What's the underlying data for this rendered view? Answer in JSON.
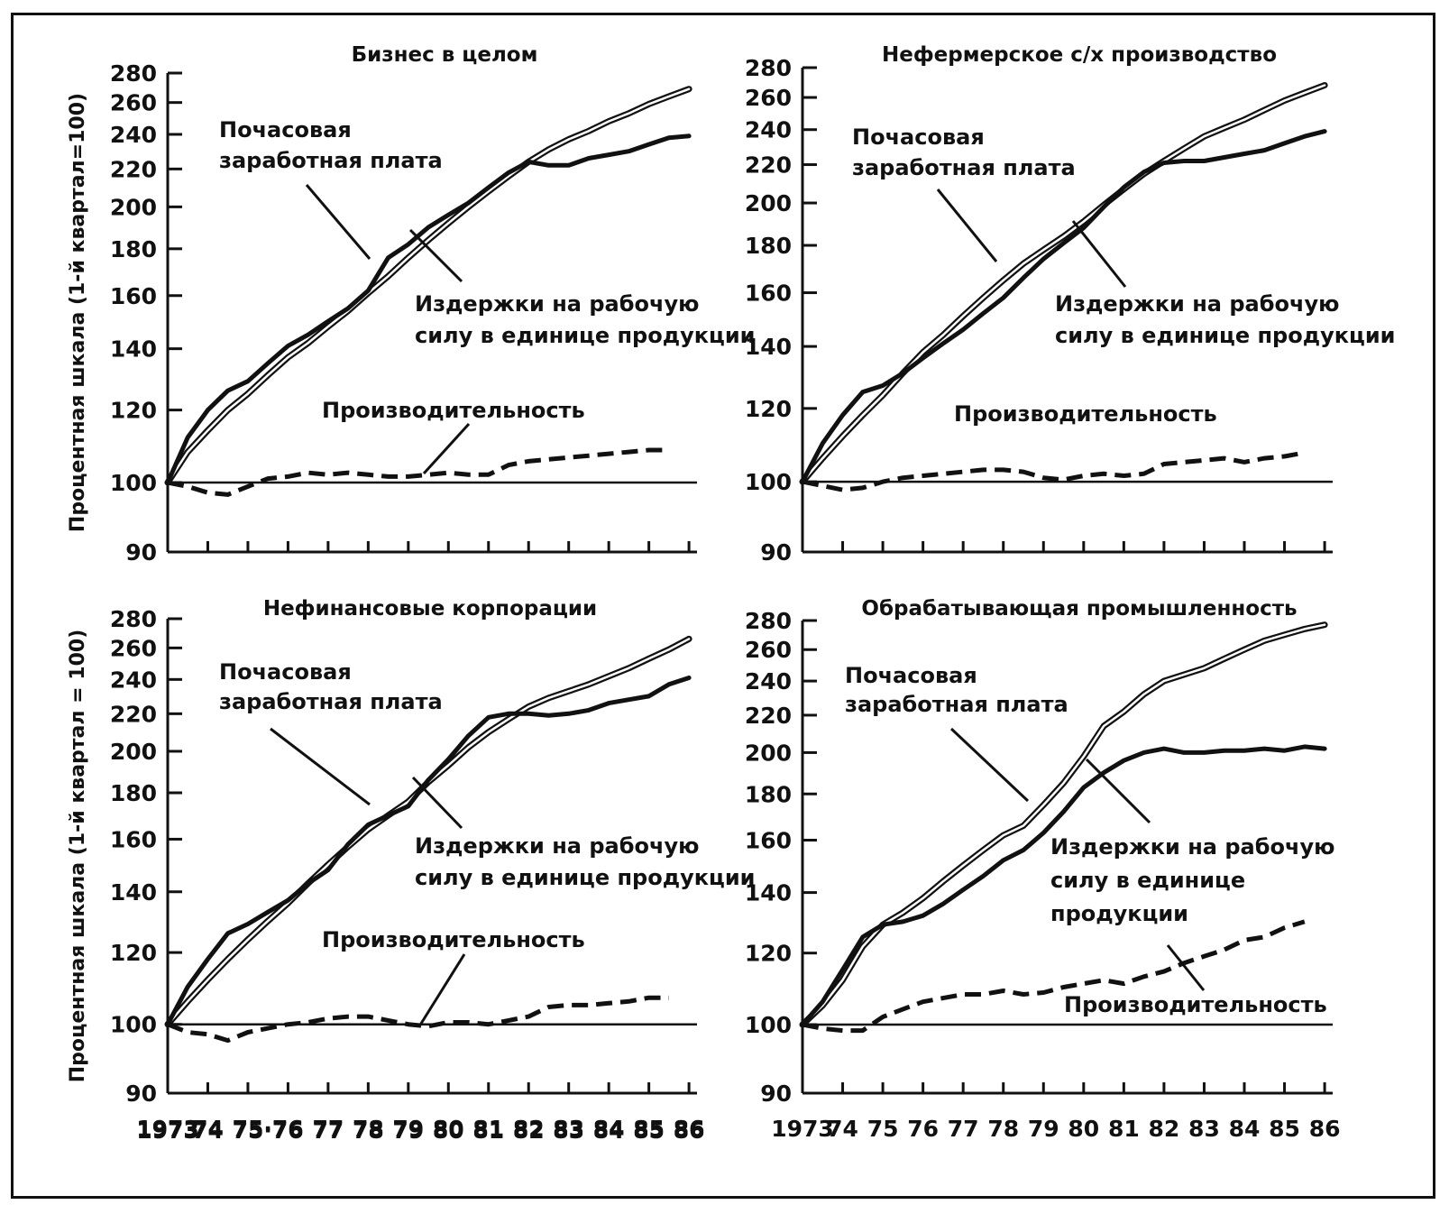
{
  "chart_data": [
    {
      "type": "line",
      "title": "Бизнес в целом",
      "ylabel": "Процентная шкала (1-й квартал=100)",
      "y_scale": "log",
      "ylim": [
        90,
        280
      ],
      "y_ticks": [
        "280",
        "260",
        "240",
        "220",
        "200",
        "180",
        "160",
        "140",
        "120",
        "100",
        "90"
      ],
      "x_tick_labels": [
        "1973",
        "74",
        "75·76",
        "77",
        "78",
        "79",
        "80",
        "81",
        "82",
        "83",
        "84",
        "85",
        "86"
      ],
      "xlim": [
        1973,
        1986.2
      ],
      "reference_line": 100,
      "annotations": [
        [
          "Почасовая",
          "заработная плата"
        ],
        [
          "Издержки на рабочую",
          "силу в единице продукции"
        ],
        [
          "Производительность"
        ]
      ],
      "series": [
        {
          "id": "wage",
          "style": "thin-double",
          "x": [
            1973,
            1973.5,
            1974,
            1974.5,
            1975,
            1975.5,
            1976,
            1976.5,
            1977,
            1977.5,
            1978,
            1978.5,
            1979,
            1979.5,
            1980,
            1980.5,
            1981,
            1981.5,
            1982,
            1982.5,
            1983,
            1983.5,
            1984,
            1984.5,
            1985,
            1985.5,
            1986
          ],
          "y": [
            100,
            108,
            114,
            120,
            125,
            131,
            137,
            142,
            148,
            154,
            161,
            168,
            176,
            184,
            192,
            200,
            208,
            216,
            224,
            231,
            237,
            242,
            248,
            253,
            259,
            264,
            269
          ]
        },
        {
          "id": "unit-labor-cost",
          "style": "thick",
          "x": [
            1973,
            1973.5,
            1974,
            1974.5,
            1975,
            1975.5,
            1976,
            1976.5,
            1977,
            1977.5,
            1978,
            1978.5,
            1979,
            1979.5,
            1980,
            1980.5,
            1981,
            1981.5,
            1982,
            1982.5,
            1983,
            1983.5,
            1984,
            1984.5,
            1985,
            1985.5,
            1986
          ],
          "y": [
            100,
            112,
            120,
            126,
            129,
            135,
            141,
            145,
            150,
            155,
            162,
            176,
            182,
            190,
            196,
            202,
            210,
            218,
            224,
            222,
            222,
            226,
            228,
            230,
            234,
            238,
            239
          ]
        },
        {
          "id": "productivity",
          "style": "dashed",
          "x": [
            1973,
            1973.5,
            1974,
            1974.5,
            1975,
            1975.5,
            1976,
            1976.5,
            1977,
            1977.5,
            1978,
            1978.5,
            1979,
            1979.5,
            1980,
            1980.5,
            1981,
            1981.5,
            1982,
            1982.5,
            1983,
            1983.5,
            1984,
            1984.5,
            1985,
            1985.5
          ],
          "y": [
            100,
            99,
            97.5,
            97,
            99,
            101,
            101.5,
            102.5,
            102,
            102.5,
            102,
            101.5,
            101.5,
            102,
            102.5,
            102,
            102,
            104.5,
            105.5,
            106,
            106.5,
            107,
            107.5,
            108,
            108.5,
            108.5
          ]
        }
      ]
    },
    {
      "type": "line",
      "title": "Нефермерское с/х производство",
      "ylabel": "",
      "y_scale": "log",
      "ylim": [
        90,
        280
      ],
      "y_ticks": [
        "280",
        "260",
        "240",
        "220",
        "200",
        "180",
        "160",
        "140",
        "120",
        "100",
        "90"
      ],
      "x_tick_labels": [],
      "xlim": [
        1973,
        1986.2
      ],
      "reference_line": 100,
      "annotations": [
        [
          "Почасовая",
          "заработная плата"
        ],
        [
          "Издержки на рабочую",
          "силу в единице продукции"
        ],
        [
          "Производительность"
        ]
      ],
      "series": [
        {
          "id": "wage",
          "style": "thin-double",
          "x": [
            1973,
            1973.5,
            1974,
            1974.5,
            1975,
            1975.5,
            1976,
            1976.5,
            1977,
            1977.5,
            1978,
            1978.5,
            1979,
            1979.5,
            1980,
            1980.5,
            1981,
            1981.5,
            1982,
            1982.5,
            1983,
            1983.5,
            1984,
            1984.5,
            1985,
            1985.5,
            1986
          ],
          "y": [
            100,
            106,
            112,
            118,
            124,
            131,
            138,
            144,
            151,
            158,
            165,
            172,
            178,
            184,
            191,
            199,
            207,
            215,
            222,
            229,
            236,
            241,
            246,
            252,
            258,
            263,
            268
          ]
        },
        {
          "id": "unit-labor-cost",
          "style": "thick",
          "x": [
            1973,
            1973.5,
            1974,
            1974.5,
            1975,
            1975.5,
            1976,
            1976.5,
            1977,
            1977.5,
            1978,
            1978.5,
            1979,
            1979.5,
            1980,
            1980.5,
            1981,
            1981.5,
            1982,
            1982.5,
            1983,
            1983.5,
            1984,
            1984.5,
            1985,
            1985.5,
            1986
          ],
          "y": [
            100,
            110,
            118,
            125,
            127,
            131,
            136,
            141,
            146,
            152,
            158,
            166,
            174,
            181,
            188,
            198,
            208,
            216,
            221,
            222,
            222,
            224,
            226,
            228,
            232,
            236,
            239
          ]
        },
        {
          "id": "productivity",
          "style": "dashed",
          "x": [
            1973,
            1973.5,
            1974,
            1974.5,
            1975,
            1975.5,
            1976,
            1976.5,
            1977,
            1977.5,
            1978,
            1978.5,
            1979,
            1979.5,
            1980,
            1980.5,
            1981,
            1981.5,
            1982,
            1982.5,
            1983,
            1983.5,
            1984,
            1984.5,
            1985,
            1985.5
          ],
          "y": [
            100,
            99,
            98,
            98.5,
            100,
            101,
            101.5,
            102,
            102.5,
            103,
            103,
            102.5,
            101,
            100.5,
            101.5,
            102,
            101.5,
            102,
            104.5,
            105,
            105.5,
            106,
            105,
            106,
            106.5,
            107.5
          ]
        }
      ]
    },
    {
      "type": "line",
      "title": "Нефинансовые корпорации",
      "ylabel": "Процентная шкала (1-й квартал = 100)",
      "y_scale": "log",
      "ylim": [
        90,
        280
      ],
      "y_ticks": [
        "280",
        "260",
        "240",
        "220",
        "200",
        "180",
        "160",
        "140",
        "120",
        "100",
        "90"
      ],
      "x_tick_labels": [
        "1973",
        "74",
        "75·76",
        "77",
        "78",
        "79",
        "80",
        "81",
        "82",
        "83",
        "84",
        "85",
        "86"
      ],
      "xlim": [
        1973,
        1986.2
      ],
      "reference_line": 100,
      "annotations": [
        [
          "Почасовая",
          "заработная плата"
        ],
        [
          "Издержки на рабочую",
          "силу в единице продукции"
        ],
        [
          "Производительность"
        ]
      ],
      "series": [
        {
          "id": "wage",
          "style": "thin-double",
          "x": [
            1973,
            1973.5,
            1974,
            1974.5,
            1975,
            1975.5,
            1976,
            1976.5,
            1977,
            1977.5,
            1978,
            1978.5,
            1979,
            1979.5,
            1980,
            1980.5,
            1981,
            1981.5,
            1982,
            1982.5,
            1983,
            1983.5,
            1984,
            1984.5,
            1985,
            1985.5,
            1986
          ],
          "y": [
            100,
            106,
            112,
            118,
            124,
            130,
            136,
            143,
            150,
            157,
            164,
            170,
            176,
            185,
            193,
            202,
            210,
            217,
            224,
            229,
            233,
            237,
            242,
            247,
            253,
            259,
            266
          ]
        },
        {
          "id": "unit-labor-cost",
          "style": "thick",
          "x": [
            1973,
            1973.5,
            1974,
            1974.5,
            1975,
            1975.5,
            1976,
            1976.5,
            1977,
            1977.5,
            1978,
            1978.5,
            1979,
            1979.5,
            1980,
            1980.5,
            1981,
            1981.5,
            1982,
            1982.5,
            1983,
            1983.5,
            1984,
            1984.5,
            1985,
            1985.5,
            1986
          ],
          "y": [
            100,
            110,
            118,
            126,
            129,
            133,
            137,
            143,
            148,
            158,
            166,
            170,
            174,
            186,
            196,
            208,
            218,
            220,
            220,
            219,
            220,
            222,
            226,
            228,
            230,
            237,
            241
          ]
        },
        {
          "id": "productivity",
          "style": "dashed",
          "x": [
            1973,
            1973.5,
            1974,
            1974.5,
            1975,
            1975.5,
            1976,
            1976.5,
            1977,
            1977.5,
            1978,
            1978.5,
            1979,
            1979.5,
            1980,
            1980.5,
            1981,
            1981.5,
            1982,
            1982.5,
            1983,
            1983.5,
            1984,
            1984.5,
            1985,
            1985.5
          ],
          "y": [
            100,
            98,
            97.5,
            96,
            98,
            99,
            100,
            100.5,
            101.5,
            102,
            102,
            101,
            100,
            99.5,
            100.5,
            100.5,
            100,
            101,
            102,
            104.5,
            105,
            105,
            105.5,
            106,
            107,
            107
          ]
        }
      ]
    },
    {
      "type": "line",
      "title": "Обрабатывающая промышленность",
      "ylabel": "",
      "y_scale": "log",
      "ylim": [
        90,
        280
      ],
      "y_ticks": [
        "280",
        "260",
        "240",
        "220",
        "200",
        "180",
        "160",
        "140",
        "120",
        "100",
        "90"
      ],
      "x_tick_labels": [
        "1973",
        "74",
        "75",
        "76",
        "77",
        "78",
        "79",
        "80",
        "81",
        "82",
        "83",
        "84",
        "85",
        "86"
      ],
      "xlim": [
        1973,
        1986.2
      ],
      "reference_line": 100,
      "annotations": [
        [
          "Почасовая",
          "заработная плата"
        ],
        [
          "Издержки на рабочую",
          "силу в единице",
          "продукции"
        ],
        [
          "Производительность"
        ]
      ],
      "series": [
        {
          "id": "wage",
          "style": "thin-double",
          "x": [
            1973,
            1973.5,
            1974,
            1974.5,
            1975,
            1975.5,
            1976,
            1976.5,
            1977,
            1977.5,
            1978,
            1978.5,
            1979,
            1979.5,
            1980,
            1980.5,
            1981,
            1981.5,
            1982,
            1982.5,
            1983,
            1983.5,
            1984,
            1984.5,
            1985,
            1985.5,
            1986
          ],
          "y": [
            100,
            105,
            112,
            122,
            129,
            133,
            138,
            144,
            150,
            156,
            162,
            166,
            175,
            185,
            198,
            214,
            222,
            232,
            240,
            244,
            248,
            254,
            260,
            266,
            270,
            274,
            277
          ]
        },
        {
          "id": "unit-labor-cost",
          "style": "thick",
          "x": [
            1973,
            1973.5,
            1974,
            1974.5,
            1975,
            1975.5,
            1976,
            1976.5,
            1977,
            1977.5,
            1978,
            1978.5,
            1979,
            1979.5,
            1980,
            1980.5,
            1981,
            1981.5,
            1982,
            1982.5,
            1983,
            1983.5,
            1984,
            1984.5,
            1985,
            1985.5,
            1986
          ],
          "y": [
            100,
            106,
            115,
            125,
            129,
            130,
            132,
            136,
            141,
            146,
            152,
            156,
            163,
            172,
            183,
            190,
            196,
            200,
            202,
            200,
            200,
            201,
            201,
            202,
            201,
            203,
            202
          ]
        },
        {
          "id": "productivity",
          "style": "dashed",
          "x": [
            1973,
            1973.5,
            1974,
            1974.5,
            1975,
            1975.5,
            1976,
            1976.5,
            1977,
            1977.5,
            1978,
            1978.5,
            1979,
            1979.5,
            1980,
            1980.5,
            1981,
            1981.5,
            1982,
            1982.5,
            1983,
            1983.5,
            1984,
            1984.5,
            1985,
            1985.5
          ],
          "y": [
            100,
            99,
            98.5,
            98.5,
            102,
            104,
            106,
            107,
            108,
            108,
            109,
            108,
            108.5,
            110,
            111,
            112,
            111,
            113,
            114.5,
            117,
            119,
            121,
            124,
            125,
            128,
            130
          ]
        }
      ]
    }
  ]
}
